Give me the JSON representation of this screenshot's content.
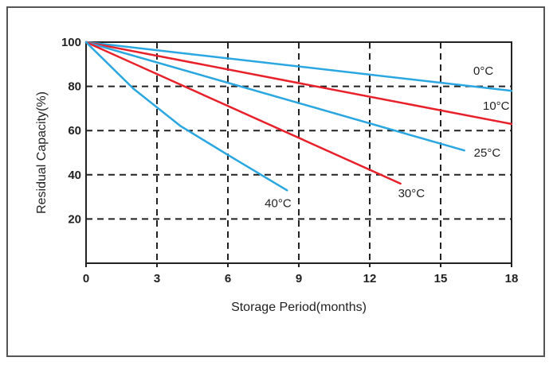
{
  "chart_data": {
    "type": "line",
    "title": "",
    "xlabel": "Storage Period(months)",
    "ylabel": "Residual Capacity(%)",
    "xlim": [
      0,
      18
    ],
    "ylim": [
      0,
      100
    ],
    "xticks": [
      "0",
      "3",
      "6",
      "9",
      "12",
      "15",
      "18"
    ],
    "yticks": [
      "20",
      "40",
      "60",
      "80",
      "100"
    ],
    "grid": true,
    "colors": {
      "red": "#e8202a",
      "blue": "#2aa6e0",
      "grid": "#222222",
      "axis": "#222222"
    },
    "series": [
      {
        "name": "0°C",
        "color": "#2aa6e0",
        "x": [
          0,
          18
        ],
        "y": [
          100,
          78
        ]
      },
      {
        "name": "10°C",
        "color": "#e8202a",
        "x": [
          0,
          18
        ],
        "y": [
          100,
          63
        ]
      },
      {
        "name": "25°C",
        "color": "#2aa6e0",
        "x": [
          0,
          16
        ],
        "y": [
          100,
          51
        ]
      },
      {
        "name": "30°C",
        "color": "#e8202a",
        "x": [
          0,
          13.3
        ],
        "y": [
          100,
          36
        ]
      },
      {
        "name": "40°C",
        "color": "#2aa6e0",
        "x": [
          0,
          2,
          4,
          6,
          8.5
        ],
        "y": [
          100,
          79,
          62,
          49,
          33
        ]
      }
    ]
  }
}
